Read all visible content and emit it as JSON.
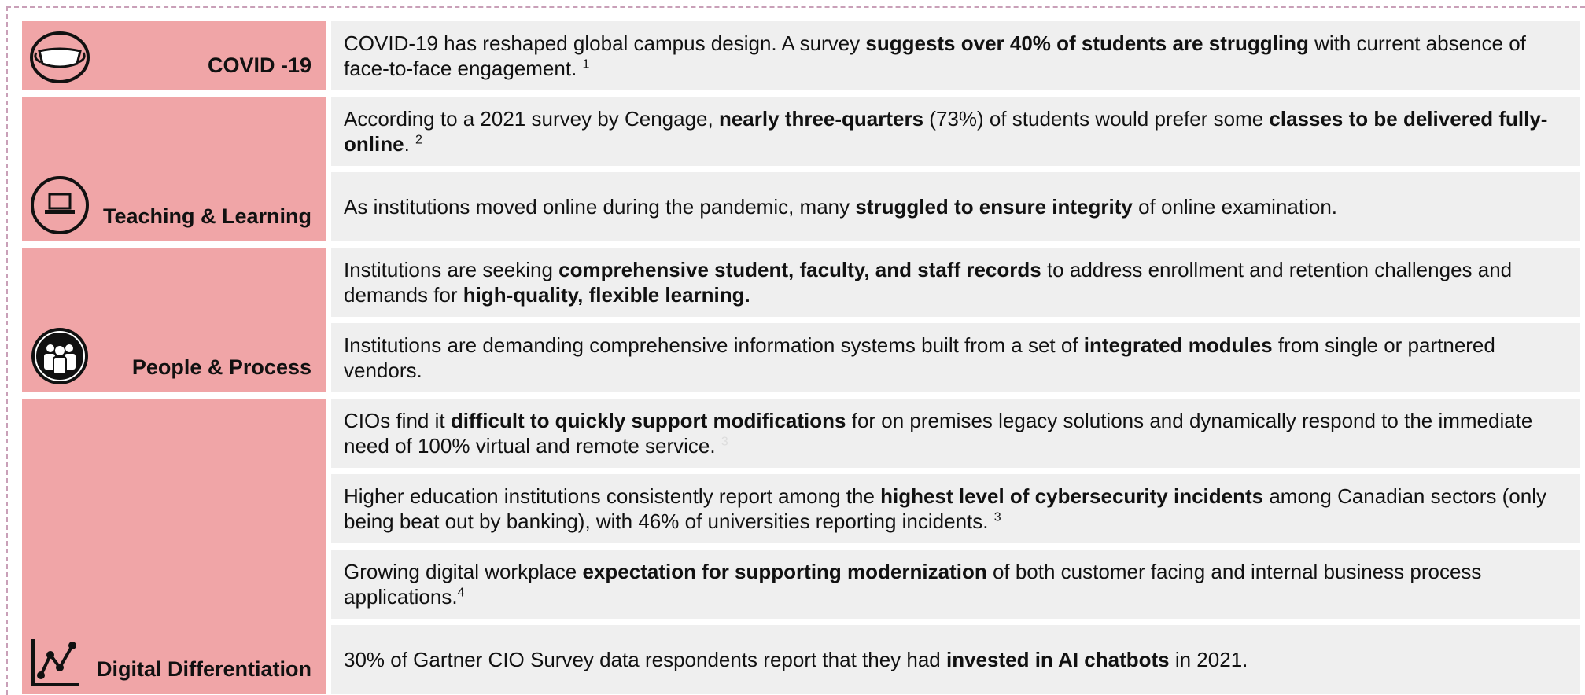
{
  "sections": [
    {
      "label": "COVID -19",
      "items": [
        {
          "segments": [
            {
              "text": "COVID-19 has reshaped global campus design. A survey "
            },
            {
              "text": "suggests over 40% of students are struggling",
              "style": "bold"
            },
            {
              "text": " with current absence of face-to-face engagement. "
            },
            {
              "text": "1",
              "style": "sup"
            }
          ]
        }
      ]
    },
    {
      "label": "Teaching & Learning",
      "items": [
        {
          "segments": [
            {
              "text": "According to a 2021 survey by Cengage, "
            },
            {
              "text": "nearly three-quarters",
              "style": "bold"
            },
            {
              "text": " (73%) of students would prefer some "
            },
            {
              "text": "classes to be delivered fully-online",
              "style": "bold"
            },
            {
              "text": ". "
            },
            {
              "text": "2",
              "style": "sup"
            }
          ]
        },
        {
          "segments": [
            {
              "text": "As institutions moved online during the pandemic, many "
            },
            {
              "text": "struggled to ensure integrity",
              "style": "bold"
            },
            {
              "text": " of online examination."
            }
          ]
        }
      ]
    },
    {
      "label": "People & Process",
      "items": [
        {
          "segments": [
            {
              "text": "Institutions are seeking "
            },
            {
              "text": "comprehensive student, faculty, and staff records",
              "style": "bold"
            },
            {
              "text": " to address enrollment and retention challenges and demands for "
            },
            {
              "text": "high-quality, flexible learning.",
              "style": "bold"
            }
          ]
        },
        {
          "segments": [
            {
              "text": "Institutions are demanding comprehensive information systems built from a set of "
            },
            {
              "text": "integrated modules",
              "style": "bold"
            },
            {
              "text": " from single or partnered vendors."
            }
          ]
        }
      ]
    },
    {
      "label": "Digital Differentiation",
      "items": [
        {
          "segments": [
            {
              "text": "CIOs find it "
            },
            {
              "text": "difficult to quickly support modifications",
              "style": "bold"
            },
            {
              "text": " for on premises legacy solutions and dynamically respond to the immediate need of 100% virtual and remote service. "
            },
            {
              "text": "3",
              "style": "faint-sup"
            }
          ]
        },
        {
          "segments": [
            {
              "text": "Higher education institutions consistently report among the "
            },
            {
              "text": "highest level of cybersecurity incidents",
              "style": "bold"
            },
            {
              "text": " among Canadian sectors (only being beat out by banking), with 46% of universities reporting incidents. "
            },
            {
              "text": "3",
              "style": "sup"
            }
          ]
        },
        {
          "segments": [
            {
              "text": "Growing digital workplace "
            },
            {
              "text": "expectation for supporting modernization",
              "style": "bold"
            },
            {
              "text": " of both customer facing and internal business process applications."
            },
            {
              "text": "4",
              "style": "sup"
            }
          ]
        },
        {
          "segments": [
            {
              "text": "30% of Gartner CIO Survey data respondents report that they had "
            },
            {
              "text": "invested in AI chatbots",
              "style": "bold"
            },
            {
              "text": " in 2021."
            }
          ]
        }
      ]
    }
  ]
}
